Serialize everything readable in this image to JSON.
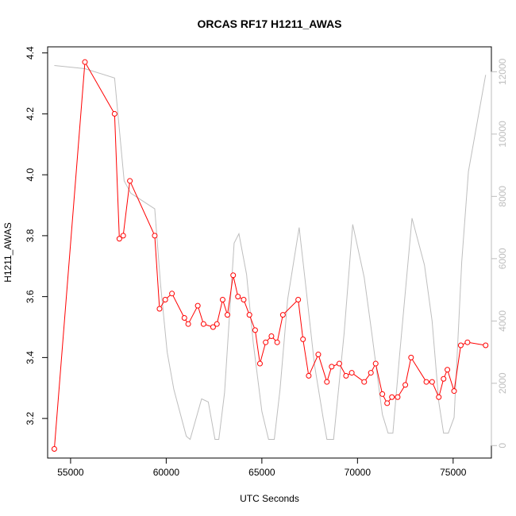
{
  "chart_data": {
    "type": "line",
    "title": "ORCAS RF17 H1211_AWAS",
    "xlabel": "UTC Seconds",
    "ylabel": "H1211_AWAS",
    "xlim": [
      53800,
      77000
    ],
    "ylim": [
      3.07,
      4.42
    ],
    "y2lim": [
      -400,
      12800
    ],
    "x_ticks": [
      55000,
      60000,
      65000,
      70000,
      75000
    ],
    "x_tick_labels": [
      "55000",
      "60000",
      "65000",
      "70000",
      "75000"
    ],
    "y_ticks": [
      3.2,
      3.4,
      3.6,
      3.8,
      4.0,
      4.2,
      4.4
    ],
    "y_tick_labels": [
      "3.2",
      "3.4",
      "3.6",
      "3.8",
      "4.0",
      "4.2",
      "4.4"
    ],
    "y2_ticks": [
      0,
      2000,
      4000,
      6000,
      8000,
      10000,
      12000
    ],
    "y2_tick_labels": [
      "0",
      "2000",
      "4000",
      "6000",
      "8000",
      "10000",
      "12000"
    ],
    "grid": false,
    "series": [
      {
        "color": "#ff0000",
        "marker": "open-circle",
        "axis": "left",
        "x": [
          54150,
          55750,
          57300,
          57550,
          57750,
          58100,
          59400,
          59650,
          59950,
          60300,
          60950,
          61150,
          61650,
          61950,
          62450,
          62650,
          62950,
          63200,
          63500,
          63750,
          64050,
          64350,
          64650,
          64900,
          65200,
          65500,
          65800,
          66100,
          66900,
          67150,
          67450,
          67950,
          68400,
          68650,
          69050,
          69400,
          69700,
          70350,
          70700,
          70950,
          71300,
          71550,
          71800,
          72100,
          72500,
          72800,
          73600,
          73900,
          74250,
          74500,
          74700,
          75050,
          75400,
          75750,
          76700
        ],
        "y": [
          3.1,
          4.37,
          4.2,
          3.79,
          3.8,
          3.98,
          3.8,
          3.56,
          3.59,
          3.61,
          3.53,
          3.51,
          3.57,
          3.51,
          3.5,
          3.51,
          3.59,
          3.54,
          3.67,
          3.6,
          3.59,
          3.54,
          3.49,
          3.38,
          3.45,
          3.47,
          3.45,
          3.54,
          3.59,
          3.46,
          3.34,
          3.41,
          3.32,
          3.37,
          3.38,
          3.34,
          3.35,
          3.32,
          3.35,
          3.38,
          3.28,
          3.25,
          3.27,
          3.27,
          3.31,
          3.4,
          3.32,
          3.32,
          3.27,
          3.33,
          3.36,
          3.29,
          3.44,
          3.45,
          3.44
        ]
      },
      {
        "color": "#bebebe",
        "axis": "right",
        "x": [
          54150,
          55750,
          57300,
          57800,
          58150,
          59400,
          59700,
          60050,
          60400,
          61050,
          61250,
          61850,
          62200,
          62550,
          62750,
          63050,
          63550,
          63800,
          64200,
          64550,
          65000,
          65350,
          65650,
          65950,
          66350,
          66950,
          67300,
          67750,
          68200,
          68400,
          68750,
          69300,
          69750,
          70350,
          70750,
          71300,
          71600,
          71850,
          72200,
          72850,
          73500,
          73900,
          74250,
          74500,
          74750,
          75050,
          75450,
          75800,
          76700
        ],
        "y": [
          12200,
          12100,
          11800,
          8500,
          8100,
          7600,
          5200,
          3000,
          1800,
          300,
          200,
          1500,
          1400,
          200,
          200,
          1700,
          6500,
          6800,
          5500,
          3300,
          1100,
          200,
          200,
          1800,
          4700,
          7000,
          5100,
          2600,
          900,
          200,
          200,
          3600,
          7100,
          5400,
          3600,
          1000,
          400,
          400,
          2900,
          7300,
          5800,
          4000,
          1400,
          400,
          400,
          900,
          5900,
          8800,
          11900
        ]
      }
    ]
  }
}
